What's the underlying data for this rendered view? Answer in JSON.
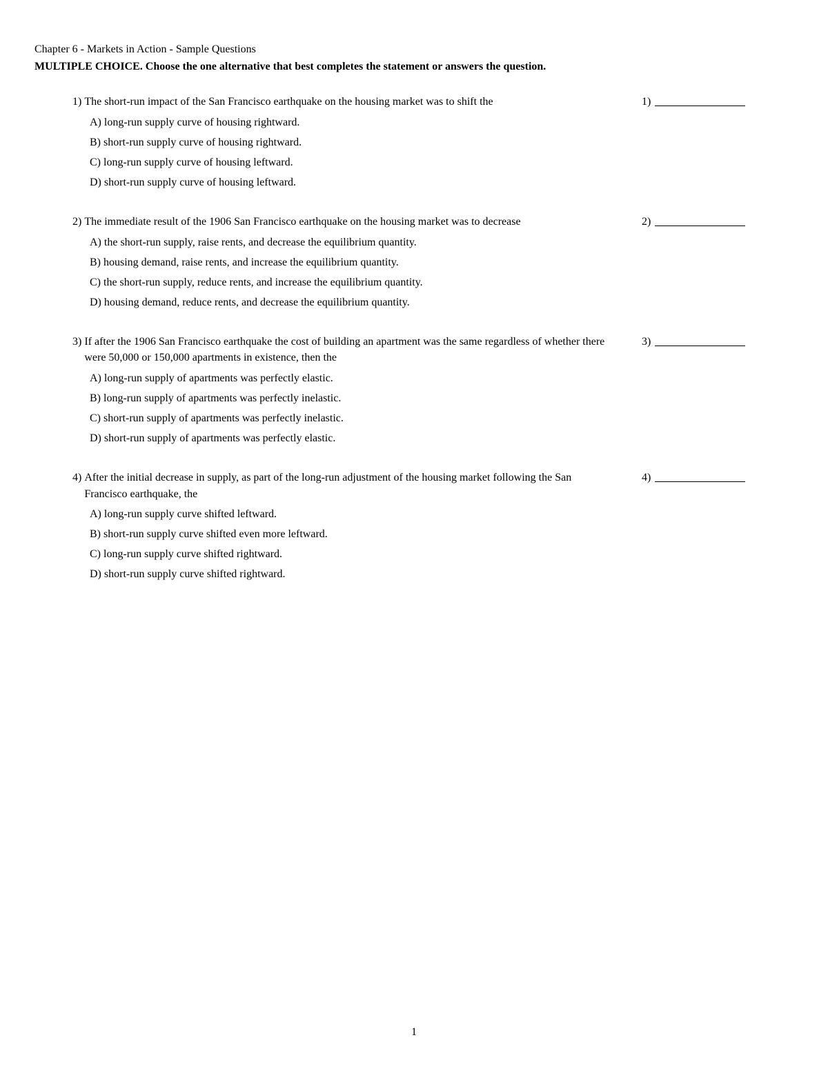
{
  "chapter_title": "Chapter 6 - Markets in Action - Sample Questions",
  "instructions": "MULTIPLE CHOICE.  Choose the one alternative that best completes the statement or answers the question.",
  "page_number": "1",
  "option_letters": [
    "A)",
    "B)",
    "C)",
    "D)"
  ],
  "questions": [
    {
      "num": "1)",
      "stem": "The short-run impact of the San Francisco earthquake on the housing market was to shift the",
      "options": [
        "long-run supply curve of housing rightward.",
        "short-run supply curve of housing rightward.",
        "long-run supply curve of housing leftward.",
        "short-run supply curve of housing leftward."
      ],
      "answer_num": "1)"
    },
    {
      "num": "2)",
      "stem": "The immediate result of the 1906 San Francisco earthquake on the housing market was to decrease",
      "options": [
        "the short-run supply, raise rents, and decrease the equilibrium quantity.",
        "housing demand, raise rents, and increase the equilibrium quantity.",
        "the short-run supply, reduce rents, and increase the equilibrium quantity.",
        "housing demand, reduce rents, and decrease the equilibrium quantity."
      ],
      "answer_num": "2)"
    },
    {
      "num": "3)",
      "stem": "If after the 1906 San Francisco earthquake the cost of building an apartment was the same regardless of whether there were 50,000 or 150,000 apartments in existence, then the",
      "options": [
        "long-run supply of apartments was perfectly elastic.",
        "long-run supply of apartments was perfectly inelastic.",
        "short-run supply of apartments was perfectly inelastic.",
        "short-run supply of apartments was perfectly elastic."
      ],
      "answer_num": "3)"
    },
    {
      "num": "4)",
      "stem": "After the initial decrease in supply, as part of the long-run adjustment of the housing market following the San Francisco earthquake, the",
      "options": [
        "long-run supply curve shifted leftward.",
        "short-run supply curve shifted even more leftward.",
        "long-run supply curve shifted rightward.",
        "short-run supply curve shifted rightward."
      ],
      "answer_num": "4)"
    }
  ]
}
